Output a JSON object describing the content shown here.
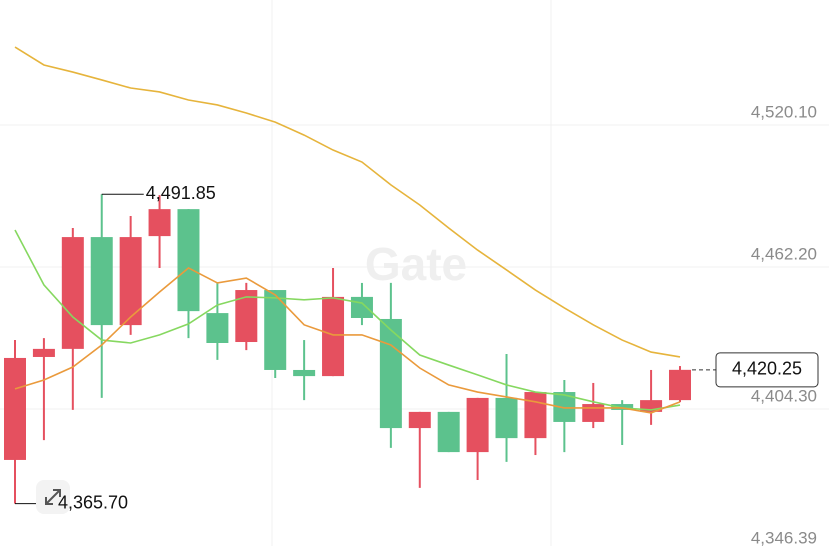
{
  "chart_data": {
    "type": "candlestick",
    "watermark": "Gate",
    "ylim": [
      4348.4,
      4571.1
    ],
    "yticks": [
      {
        "value": 4520.1,
        "label": "4,520.10"
      },
      {
        "value": 4462.2,
        "label": "4,462.20"
      },
      {
        "value": 4404.3,
        "label": "4,404.30"
      },
      {
        "value": 4346.39,
        "label": "4,346.39"
      }
    ],
    "grid": true,
    "up_color": "#e5505f",
    "down_color": "#5cc28d",
    "open": [
      4383.5,
      4425.5,
      4428.8,
      4474.4,
      4438.5,
      4474.8,
      4485.8,
      4443.4,
      4431.6,
      4452.8,
      4420.2,
      4417.7,
      4450.0,
      4441.0,
      4396.5,
      4403.1,
      4386.7,
      4408.8,
      4392.4,
      4411.2,
      4399.0,
      4406.3,
      4403.1,
      4407.9
    ],
    "high": [
      4432.4,
      4433.2,
      4478.1,
      4491.85,
      4483.0,
      4491.5,
      4485.8,
      4455.7,
      4455.7,
      4452.8,
      4432.4,
      4461.8,
      4455.7,
      4455.7,
      4403.1,
      4403.1,
      4408.8,
      4426.7,
      4411.2,
      4416.1,
      4414.9,
      4407.9,
      4420.2,
      4421.8
    ],
    "low": [
      4365.7,
      4391.6,
      4403.9,
      4408.8,
      4434.5,
      4461.8,
      4433.2,
      4424.3,
      4428.3,
      4416.9,
      4407.9,
      4417.7,
      4438.5,
      4388.4,
      4372.1,
      4386.7,
      4375.3,
      4382.7,
      4385.5,
      4386.7,
      4396.5,
      4389.6,
      4397.8,
      4407.1
    ],
    "close": [
      4425.1,
      4428.8,
      4474.4,
      4438.5,
      4474.4,
      4485.8,
      4444.2,
      4431.2,
      4452.8,
      4420.2,
      4417.7,
      4450.0,
      4441.4,
      4396.5,
      4403.1,
      4386.7,
      4408.8,
      4392.4,
      4411.2,
      4399.0,
      4406.3,
      4403.9,
      4407.9,
      4420.25
    ],
    "lines": [
      {
        "color": "#86d860",
        "values": [
          4477.3,
          4454.9,
          4441.8,
          4432.4,
          4431.2,
          4434.5,
          4439.0,
          4446.7,
          4450.0,
          4449.6,
          4448.8,
          4449.6,
          4447.5,
          4436.5,
          4426.3,
          4422.2,
          4418.2,
          4414.1,
          4411.2,
          4410.0,
          4407.2,
          4404.7,
          4403.9,
          4405.9
        ]
      },
      {
        "color": "#ea9a3c",
        "values": [
          4412.5,
          4416.1,
          4421.4,
          4430.4,
          4441.8,
          4452.0,
          4461.8,
          4455.7,
          4457.7,
          4450.8,
          4438.6,
          4434.5,
          4434.5,
          4430.4,
          4421.0,
          4414.1,
          4411.2,
          4409.2,
          4407.2,
          4404.7,
          4404.7,
          4404.7,
          4402.7,
          4407.2
        ]
      },
      {
        "color": "#e6b43c",
        "values": [
          4551.9,
          4544.6,
          4541.7,
          4538.5,
          4535.2,
          4533.6,
          4530.3,
          4528.3,
          4525.0,
          4521.3,
          4516.0,
          4509.9,
          4505.0,
          4495.7,
          4487.5,
          4478.1,
          4469.1,
          4461.0,
          4452.8,
          4445.5,
          4438.6,
          4432.4,
          4427.5,
          4425.5
        ]
      }
    ],
    "max_label": {
      "value": 4491.85,
      "label": "4,491.85"
    },
    "min_label": {
      "value": 4365.7,
      "label": "4,365.70"
    },
    "last_label": {
      "value": 4420.25,
      "label": "4,420.25"
    }
  }
}
